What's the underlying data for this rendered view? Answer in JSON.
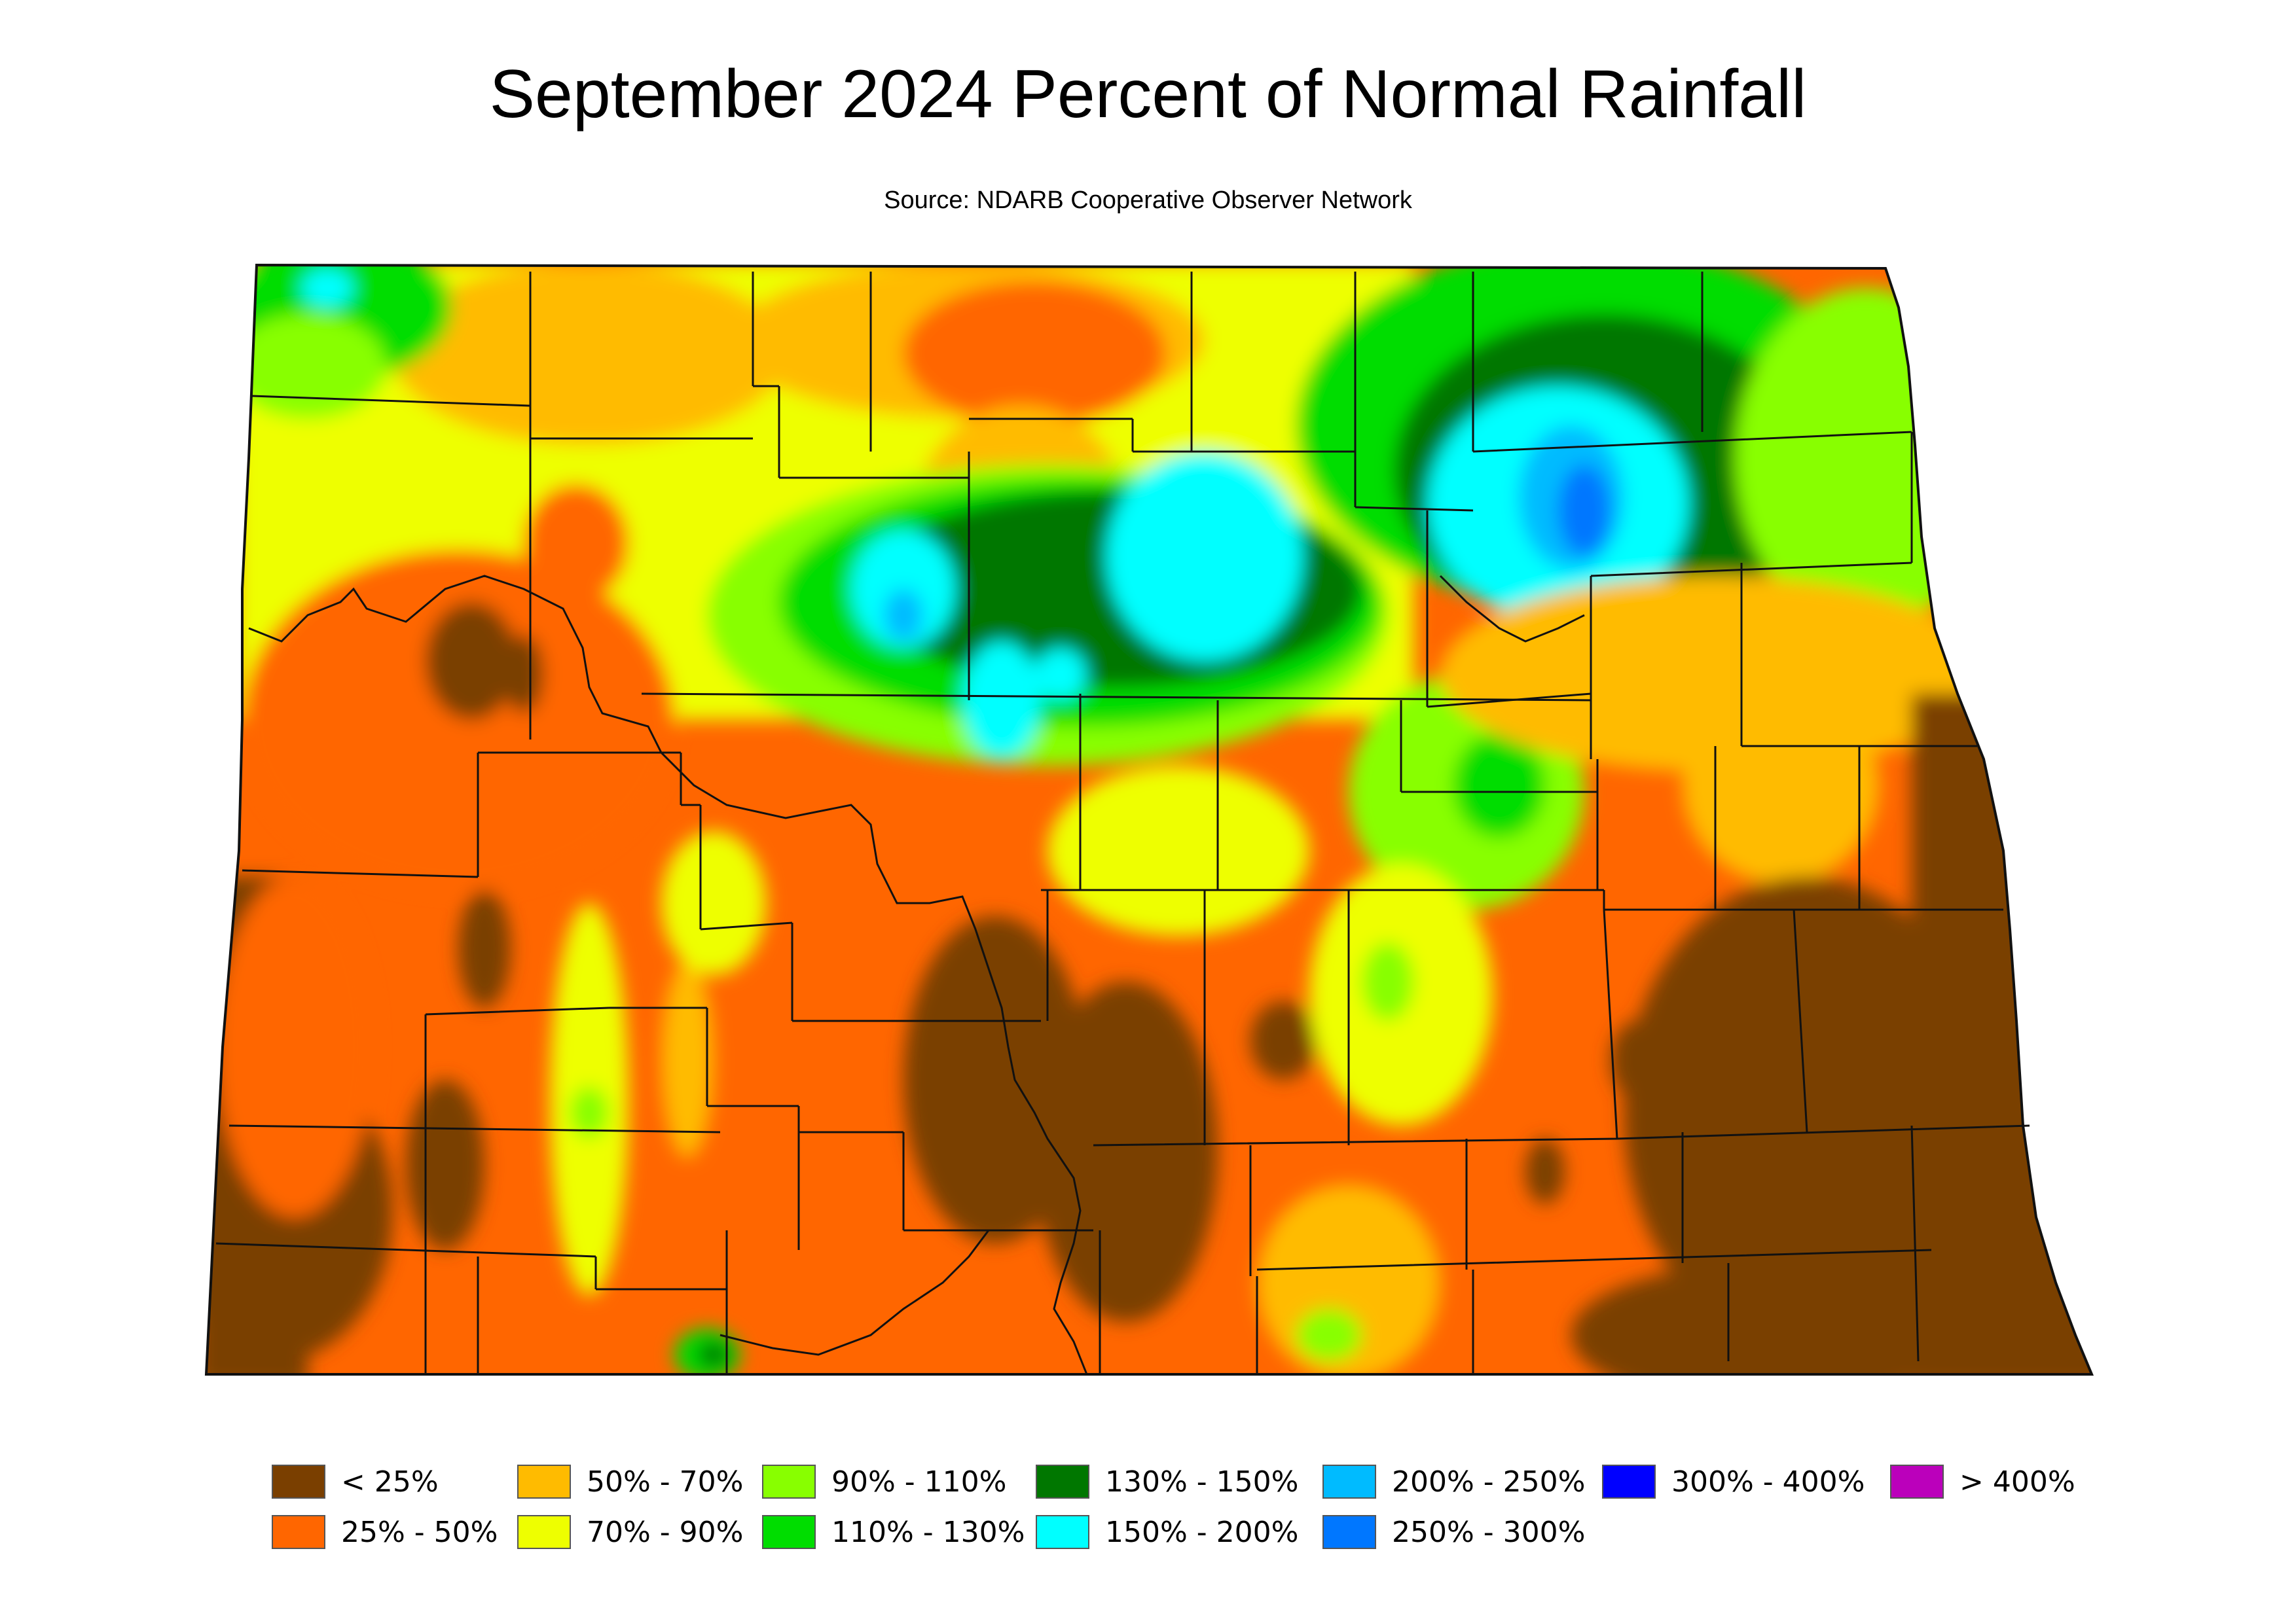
{
  "title": "September 2024 Percent of Normal Rainfall",
  "subtitle": "Source: NDARB Cooperative Observer Network",
  "legend": [
    {
      "label": "< 25%",
      "color": "#7a3f00"
    },
    {
      "label": "25% - 50%",
      "color": "#ff6600"
    },
    {
      "label": "50% - 70%",
      "color": "#ffbb00"
    },
    {
      "label": "70% - 90%",
      "color": "#eeff00"
    },
    {
      "label": "90% - 110%",
      "color": "#88ff00"
    },
    {
      "label": "110% - 130%",
      "color": "#00dd00"
    },
    {
      "label": "130% - 150%",
      "color": "#007700"
    },
    {
      "label": "150% - 200%",
      "color": "#00ffff"
    },
    {
      "label": "200% - 250%",
      "color": "#00bbff"
    },
    {
      "label": "250% - 300%",
      "color": "#0077ff"
    },
    {
      "label": "300% - 400%",
      "color": "#0000ff"
    },
    {
      "label": "> 400%",
      "color": "#bb00bb"
    }
  ]
}
